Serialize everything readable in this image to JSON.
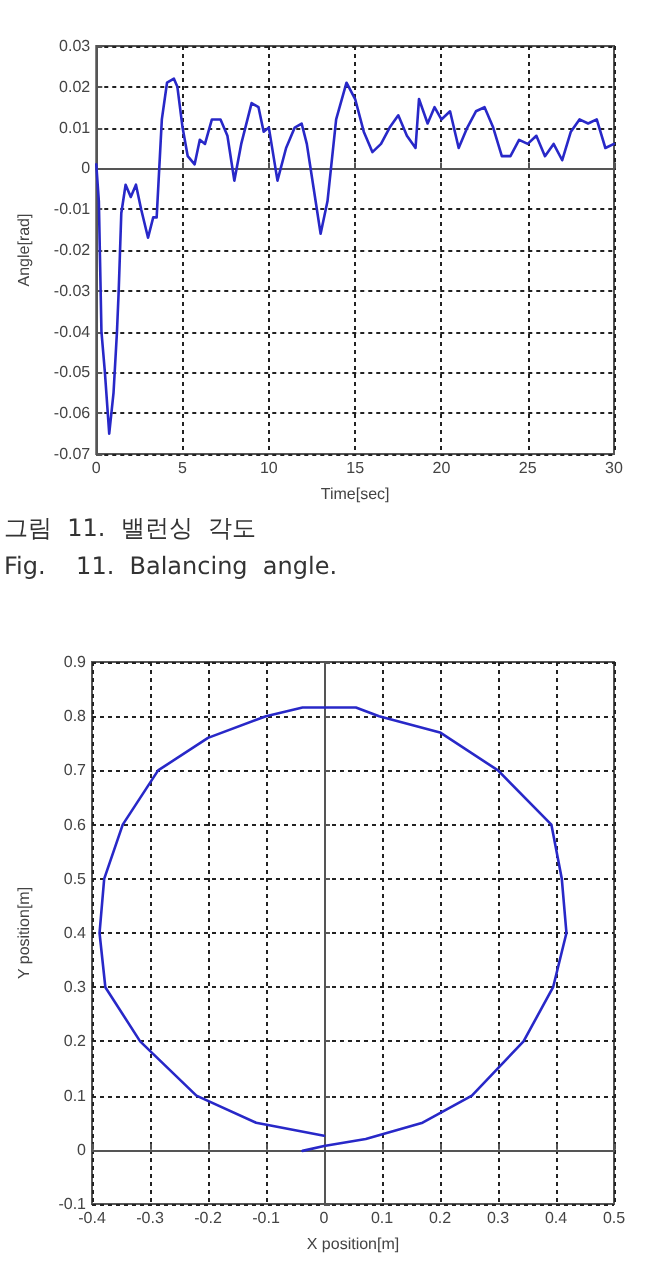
{
  "chart_data": [
    {
      "type": "line",
      "xlabel": "Time[sec]",
      "ylabel": "Angle[rad]",
      "annotations": [
        "그림  11.  밸런싱  각도",
        "Fig.    11.  Balancing  angle."
      ],
      "xlim": [
        0,
        30
      ],
      "xticks": [
        0,
        5,
        10,
        15,
        20,
        25,
        30
      ],
      "ylim": [
        -0.07,
        0.03
      ],
      "yticks": [
        -0.07,
        -0.06,
        -0.05,
        -0.04,
        -0.03,
        -0.02,
        -0.01,
        0,
        0.01,
        0.02,
        0.03
      ],
      "grid": true,
      "marker": "none",
      "line_style": "solid",
      "series": [
        {
          "color": "#2828c8",
          "x": [
            0,
            0.15,
            0.3,
            0.5,
            0.75,
            1.0,
            1.2,
            1.3,
            1.45,
            1.7,
            2.0,
            2.3,
            2.6,
            3.0,
            3.3,
            3.5,
            3.8,
            4.1,
            4.5,
            4.7,
            5.0,
            5.3,
            5.7,
            6.0,
            6.3,
            6.7,
            7.2,
            7.6,
            8.0,
            8.4,
            9.0,
            9.4,
            9.7,
            10.0,
            10.5,
            11.0,
            11.5,
            11.9,
            12.2,
            12.6,
            13.0,
            13.4,
            13.9,
            14.5,
            15.0,
            15.5,
            16.0,
            16.5,
            17.0,
            17.5,
            18.0,
            18.5,
            18.7,
            19.2,
            19.6,
            20.0,
            20.5,
            21.0,
            21.5,
            22.0,
            22.5,
            23.0,
            23.5,
            24.0,
            24.5,
            25.0,
            25.5,
            26.0,
            26.5,
            27.0,
            27.5,
            28.0,
            28.5,
            29.0,
            29.5,
            30.0
          ],
          "values": [
            0.001,
            -0.008,
            -0.04,
            -0.05,
            -0.065,
            -0.055,
            -0.04,
            -0.03,
            -0.011,
            -0.004,
            -0.007,
            -0.004,
            -0.01,
            -0.017,
            -0.012,
            -0.012,
            0.012,
            0.021,
            0.022,
            0.02,
            0.01,
            0.003,
            0.001,
            0.007,
            0.006,
            0.012,
            0.012,
            0.008,
            -0.003,
            0.006,
            0.016,
            0.015,
            0.009,
            0.01,
            -0.003,
            0.005,
            0.01,
            0.011,
            0.006,
            -0.005,
            -0.016,
            -0.008,
            0.012,
            0.021,
            0.017,
            0.009,
            0.004,
            0.006,
            0.01,
            0.013,
            0.008,
            0.005,
            0.017,
            0.011,
            0.015,
            0.012,
            0.014,
            0.005,
            0.01,
            0.014,
            0.015,
            0.01,
            0.003,
            0.003,
            0.007,
            0.006,
            0.008,
            0.003,
            0.006,
            0.002,
            0.009,
            0.012,
            0.011,
            0.012,
            0.005,
            0.006
          ]
        }
      ]
    },
    {
      "type": "line",
      "xlabel": "X position[m]",
      "ylabel": "Y position[m]",
      "xlim": [
        -0.4,
        0.5
      ],
      "xticks": [
        -0.4,
        -0.3,
        -0.2,
        -0.1,
        0,
        0.1,
        0.2,
        0.3,
        0.4,
        0.5
      ],
      "ylim": [
        -0.1,
        0.9
      ],
      "yticks": [
        -0.1,
        0,
        0.1,
        0.2,
        0.3,
        0.4,
        0.5,
        0.6,
        0.7,
        0.8,
        0.9
      ],
      "grid": true,
      "marker": "none",
      "line_style": "solid",
      "series": [
        {
          "color": "#2828c8",
          "x": [
            -0.037,
            0,
            0.072,
            0.17,
            0.255,
            0.344,
            0.395,
            0.418,
            0.41,
            0.392,
            0.3,
            0.2,
            0.095,
            0.055,
            -0.037,
            -0.1,
            -0.2,
            -0.286,
            -0.347,
            -0.379,
            -0.387,
            -0.377,
            -0.317,
            -0.22,
            -0.117,
            0
          ],
          "values": [
            -0.002,
            0.007,
            0.02,
            0.05,
            0.1,
            0.2,
            0.3,
            0.4,
            0.5,
            0.6,
            0.7,
            0.77,
            0.8,
            0.816,
            0.816,
            0.8,
            0.76,
            0.7,
            0.6,
            0.5,
            0.4,
            0.3,
            0.2,
            0.1,
            0.05,
            0.026
          ]
        }
      ]
    }
  ]
}
